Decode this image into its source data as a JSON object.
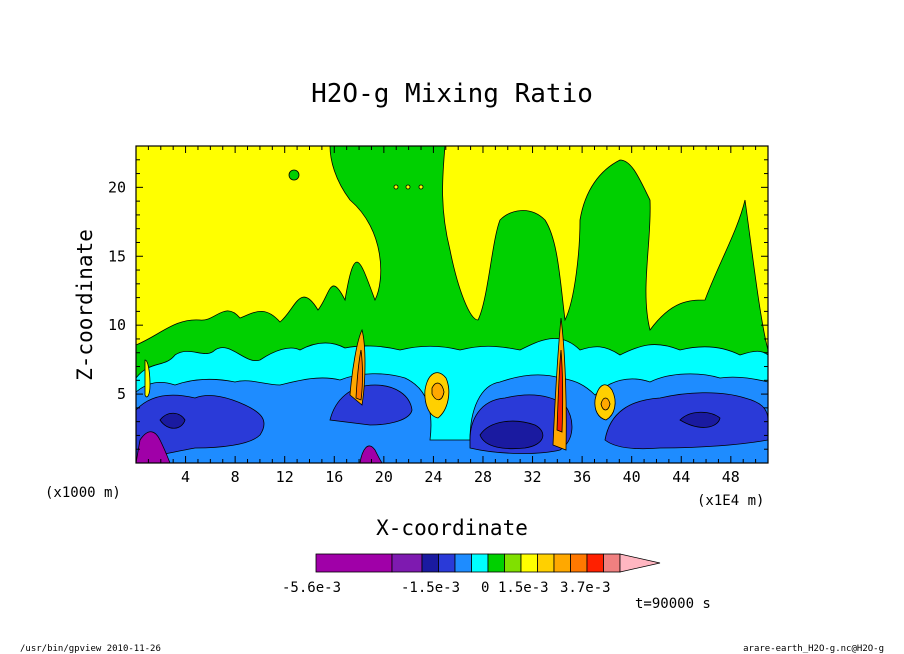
{
  "chart_data": {
    "type": "heatmap",
    "title": "H2O-g Mixing Ratio",
    "xlabel": "X-coordinate",
    "ylabel": "Z-coordinate",
    "x_unit_left": "(x1000 m)",
    "x_unit_right": "(x1E4 m)",
    "xlim": [
      0,
      51
    ],
    "ylim": [
      0,
      23
    ],
    "xticks": [
      "4",
      "8",
      "12",
      "16",
      "20",
      "24",
      "28",
      "32",
      "36",
      "40",
      "44",
      "48"
    ],
    "yticks": [
      "5",
      "10",
      "15",
      "20"
    ],
    "time_label": "t=90000 s",
    "colorbar": {
      "colors": [
        "#a000a8",
        "#7e1ab0",
        "#1a1aa0",
        "#2a3ad8",
        "#1e8cff",
        "#00ffff",
        "#00d000",
        "#80e000",
        "#ffff00",
        "#ffd000",
        "#ffa800",
        "#ff7800",
        "#ff2000",
        "#f08080",
        "#ffb6c1"
      ],
      "labels": [
        "-5.6e-3",
        "-1.5e-3",
        "0",
        "1.5e-3",
        "3.7e-3"
      ]
    }
  },
  "footer": {
    "left": "/usr/bin/gpview  2010-11-26",
    "right": "arare-earth_H2O-g.nc@H2O-g"
  }
}
